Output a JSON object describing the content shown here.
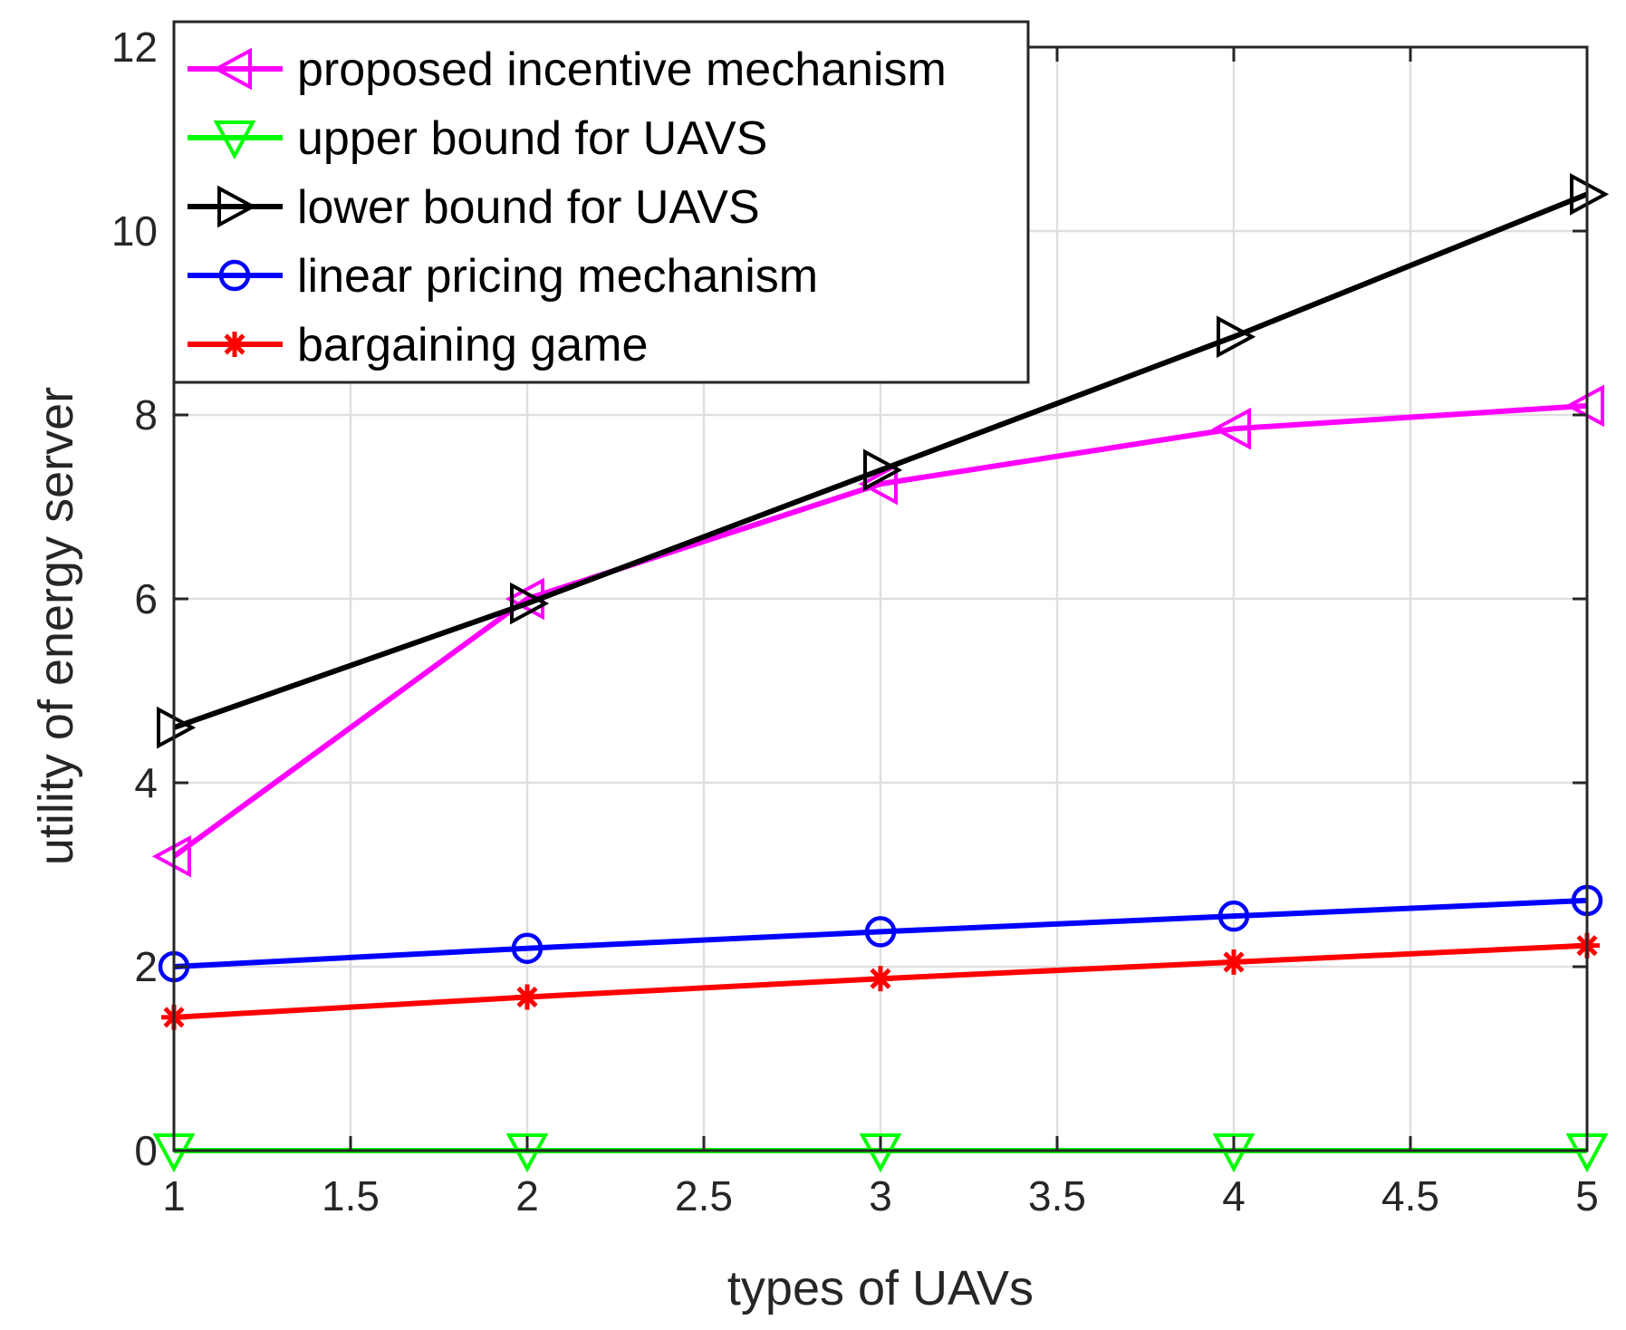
{
  "chart_data": {
    "type": "line",
    "xlabel": "types of UAVs",
    "ylabel": "utility of energy server",
    "xlim": [
      1,
      5
    ],
    "ylim": [
      0,
      12
    ],
    "xticks": [
      1,
      1.5,
      2,
      2.5,
      3,
      3.5,
      4,
      4.5,
      5
    ],
    "xtick_labels": [
      "1",
      "1.5",
      "2",
      "2.5",
      "3",
      "3.5",
      "4",
      "4.5",
      "5"
    ],
    "yticks": [
      0,
      2,
      4,
      6,
      8,
      10,
      12
    ],
    "ytick_labels": [
      "0",
      "2",
      "4",
      "6",
      "8",
      "10",
      "12"
    ],
    "grid": true,
    "legend_position": "top-left",
    "x": [
      1,
      2,
      3,
      4,
      5
    ],
    "series": [
      {
        "name": "proposed incentive mechanism",
        "color": "#ff00ff",
        "marker": "triangle-left",
        "values": [
          3.2,
          6.0,
          7.25,
          7.85,
          8.1
        ]
      },
      {
        "name": "upper bound for UAVS",
        "color": "#00ff00",
        "marker": "triangle-down",
        "values": [
          0,
          0,
          0,
          0,
          0
        ]
      },
      {
        "name": "lower bound for UAVS",
        "color": "#000000",
        "marker": "triangle-right",
        "values": [
          4.6,
          5.95,
          7.4,
          8.85,
          10.4
        ]
      },
      {
        "name": "linear pricing mechanism",
        "color": "#0000ff",
        "marker": "circle",
        "values": [
          2.0,
          2.2,
          2.38,
          2.55,
          2.72
        ]
      },
      {
        "name": "bargaining game",
        "color": "#ff0000",
        "marker": "asterisk",
        "values": [
          1.45,
          1.67,
          1.87,
          2.05,
          2.23
        ]
      }
    ]
  }
}
